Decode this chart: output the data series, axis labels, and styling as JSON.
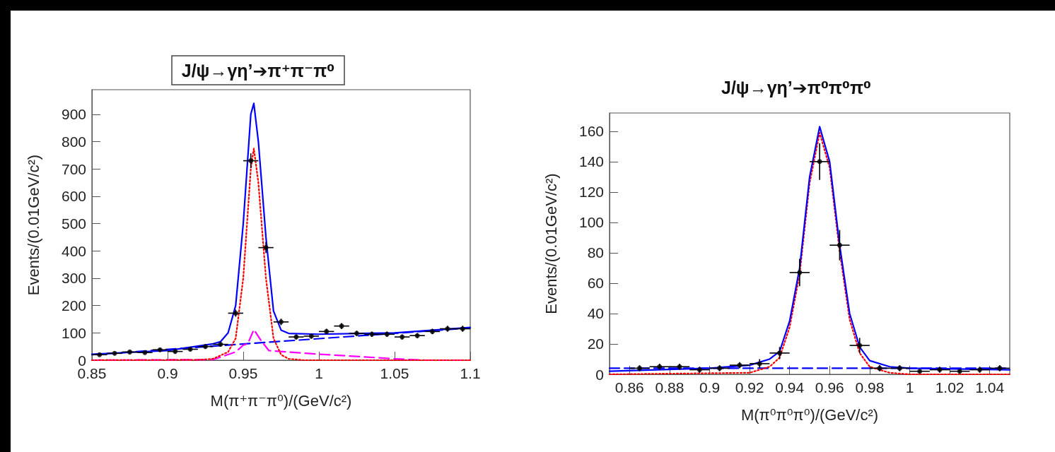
{
  "chart_data": [
    {
      "type": "scatter",
      "title": "J/ψ→γη’➔π⁺π⁻π⁰",
      "xlabel": "M(π⁺π⁻π⁰)/(GeV/c²)",
      "ylabel": "Events/(0.01GeV/c²)",
      "xlim": [
        0.85,
        1.1
      ],
      "xticks": [
        0.85,
        0.9,
        0.95,
        1,
        1.05,
        1.1
      ],
      "ylim": [
        0,
        990
      ],
      "yticks": [
        0,
        100,
        200,
        300,
        400,
        500,
        600,
        700,
        800,
        900
      ],
      "grid": false,
      "marker": "circle",
      "series": [
        {
          "type": "line",
          "color": "#0000ff",
          "line_style": "dashed",
          "marker": "none",
          "x": [
            0.85,
            1.1
          ],
          "values": [
            20,
            118
          ]
        },
        {
          "type": "line",
          "color": "#ff00ff",
          "line_style": "dashed",
          "marker": "none",
          "x": [
            0.85,
            0.93,
            0.945,
            0.95,
            0.953,
            0.957,
            0.962,
            0.967,
            0.98,
            1.0,
            1.03,
            1.05,
            1.07,
            1.1
          ],
          "values": [
            0,
            2,
            30,
            55,
            60,
            112,
            70,
            35,
            30,
            22,
            12,
            5,
            0,
            0
          ]
        },
        {
          "type": "line",
          "color": "#ff0000",
          "line_style": "dotted",
          "marker": "none",
          "x": [
            0.85,
            0.92,
            0.93,
            0.94,
            0.945,
            0.95,
            0.955,
            0.957,
            0.96,
            0.965,
            0.97,
            0.975,
            0.98,
            0.99,
            1.1
          ],
          "values": [
            0,
            1,
            5,
            30,
            80,
            300,
            700,
            775,
            650,
            300,
            80,
            20,
            5,
            0,
            0
          ]
        },
        {
          "type": "line",
          "color": "#0000ff",
          "line_style": "solid",
          "marker": "none",
          "x": [
            0.85,
            0.9,
            0.93,
            0.935,
            0.94,
            0.945,
            0.95,
            0.955,
            0.957,
            0.96,
            0.965,
            0.97,
            0.975,
            0.98,
            1.0,
            1.05,
            1.1
          ],
          "values": [
            22,
            35,
            60,
            68,
            100,
            200,
            500,
            900,
            940,
            800,
            450,
            180,
            110,
            98,
            95,
            100,
            120
          ]
        },
        {
          "color": "#000000",
          "x": [
            0.855,
            0.865,
            0.875,
            0.885,
            0.895,
            0.905,
            0.915,
            0.925,
            0.935,
            0.945,
            0.955,
            0.965,
            0.975,
            0.985,
            0.995,
            1.005,
            1.015,
            1.025,
            1.035,
            1.045,
            1.055,
            1.065,
            1.075,
            1.085,
            1.095
          ],
          "values": [
            20,
            25,
            30,
            28,
            38,
            32,
            40,
            50,
            58,
            172,
            730,
            412,
            140,
            85,
            88,
            105,
            125,
            98,
            95,
            95,
            85,
            90,
            105,
            115,
            115
          ],
          "errors": [
            4,
            5,
            5,
            5,
            6,
            6,
            6,
            7,
            8,
            13,
            27,
            20,
            12,
            9,
            9,
            10,
            11,
            10,
            10,
            10,
            9,
            9,
            10,
            11,
            11
          ],
          "xerrors": [
            0.005,
            0.005,
            0.005,
            0.005,
            0.005,
            0.005,
            0.005,
            0.005,
            0.005,
            0.005,
            0.005,
            0.005,
            0.005,
            0.005,
            0.005,
            0.005,
            0.005,
            0.005,
            0.005,
            0.005,
            0.005,
            0.005,
            0.005,
            0.005,
            0.005
          ]
        }
      ]
    },
    {
      "type": "scatter",
      "title": "J/ψ→γη’➔π⁰π⁰π⁰",
      "xlabel": "M(π⁰π⁰π⁰)/(GeV/c²)",
      "ylabel": "Events/(0.01GeV/c²)",
      "xlim": [
        0.85,
        1.05
      ],
      "xticks": [
        0.86,
        0.88,
        0.9,
        0.92,
        0.94,
        0.96,
        0.98,
        1,
        1.02,
        1.04
      ],
      "ylim": [
        0,
        172
      ],
      "yticks": [
        0,
        20,
        40,
        60,
        80,
        100,
        120,
        140,
        160
      ],
      "grid": false,
      "marker": "circle",
      "series": [
        {
          "type": "line",
          "color": "#0000ff",
          "line_style": "dashed",
          "marker": "none",
          "x": [
            0.85,
            1.05
          ],
          "values": [
            4,
            4
          ]
        },
        {
          "type": "line",
          "color": "#ff0000",
          "line_style": "dotted",
          "marker": "none",
          "x": [
            0.85,
            0.92,
            0.93,
            0.935,
            0.94,
            0.945,
            0.95,
            0.955,
            0.96,
            0.965,
            0.97,
            0.975,
            0.98,
            0.99,
            1.0,
            1.05
          ],
          "values": [
            0,
            1,
            5,
            11,
            31,
            66,
            126,
            159,
            136,
            81,
            36,
            14,
            5,
            1,
            0,
            0
          ]
        },
        {
          "type": "line",
          "color": "#0000ff",
          "line_style": "solid",
          "marker": "none",
          "x": [
            0.85,
            0.9,
            0.92,
            0.93,
            0.935,
            0.94,
            0.945,
            0.95,
            0.955,
            0.96,
            0.965,
            0.97,
            0.975,
            0.98,
            0.99,
            1.0,
            1.05
          ],
          "values": [
            2,
            4,
            6,
            10,
            15,
            35,
            70,
            130,
            163,
            140,
            85,
            40,
            18,
            9,
            5,
            4,
            3
          ]
        },
        {
          "color": "#000000",
          "x": [
            0.865,
            0.875,
            0.885,
            0.895,
            0.905,
            0.915,
            0.925,
            0.935,
            0.945,
            0.955,
            0.965,
            0.975,
            0.985,
            0.995,
            1.005,
            1.015,
            1.025,
            1.035,
            1.045
          ],
          "values": [
            4,
            5,
            5,
            3,
            4,
            6,
            7,
            14,
            67,
            140,
            85,
            19,
            4,
            4,
            2,
            3,
            2,
            3,
            4
          ],
          "errors": [
            2,
            2,
            2,
            2,
            2,
            2,
            3,
            4,
            9,
            12,
            10,
            5,
            2,
            2,
            1,
            2,
            1,
            2,
            2
          ],
          "xerrors": [
            0.005,
            0.005,
            0.005,
            0.005,
            0.005,
            0.005,
            0.005,
            0.005,
            0.005,
            0.005,
            0.005,
            0.005,
            0.005,
            0.005,
            0.005,
            0.005,
            0.005,
            0.005,
            0.005
          ]
        }
      ]
    }
  ]
}
